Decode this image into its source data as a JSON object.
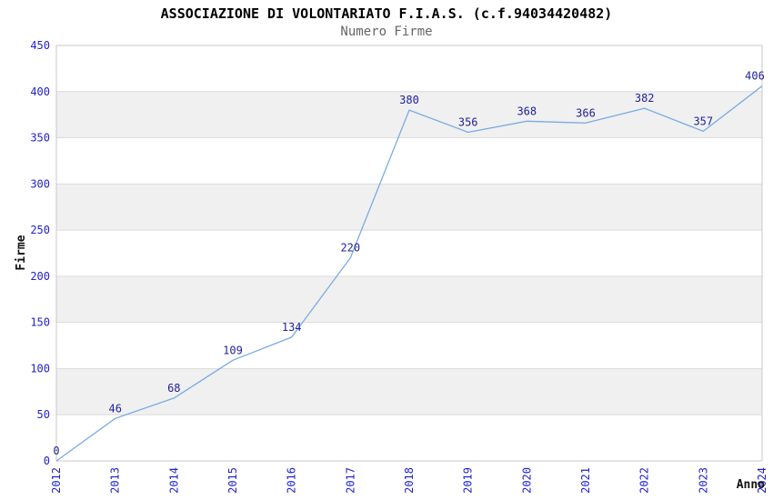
{
  "chart_data": {
    "type": "line",
    "title": "ASSOCIAZIONE DI VOLONTARIATO F.I.A.S. (c.f.94034420482)",
    "subtitle": "Numero Firme",
    "xlabel": "Anno",
    "ylabel": "Firme",
    "categories": [
      "2012",
      "2013",
      "2014",
      "2015",
      "2016",
      "2017",
      "2018",
      "2019",
      "2020",
      "2021",
      "2022",
      "2023",
      "2024"
    ],
    "values": [
      0,
      46,
      68,
      109,
      134,
      220,
      380,
      356,
      368,
      366,
      382,
      357,
      406
    ],
    "ylim": [
      0,
      450
    ],
    "ytick_step": 50,
    "grid": true,
    "band_fill": "alternating",
    "legend": "none",
    "x_tick_rotation": -90,
    "colors": {
      "line": "#7aabe2",
      "value_label": "#222299",
      "tick_label": "#2222cc",
      "band": "#f0f0f0",
      "grid": "#dcdcdc",
      "border": "#c9c9c9",
      "axis_title": "#111111",
      "title": "#000000",
      "subtitle": "#666666",
      "background": "#ffffff"
    }
  }
}
